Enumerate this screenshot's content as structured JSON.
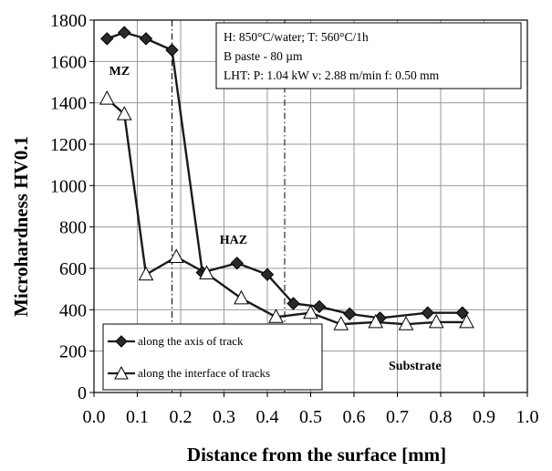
{
  "chart_data": {
    "type": "line",
    "title": "",
    "xlabel": "Distance from the surface [mm]",
    "ylabel": "Microhardness HV0.1",
    "xlim": [
      0.0,
      1.0
    ],
    "ylim": [
      0,
      1800
    ],
    "x_ticks": [
      "0.0",
      "0.1",
      "0.2",
      "0.3",
      "0.4",
      "0.5",
      "0.6",
      "0.7",
      "0.8",
      "0.9",
      "1.0"
    ],
    "y_ticks": [
      "0",
      "200",
      "400",
      "600",
      "800",
      "1000",
      "1200",
      "1400",
      "1600",
      "1800"
    ],
    "x_tick_values": [
      0.0,
      0.1,
      0.2,
      0.3,
      0.4,
      0.5,
      0.6,
      0.7,
      0.8,
      0.9,
      1.0
    ],
    "y_tick_values": [
      0,
      200,
      400,
      600,
      800,
      1000,
      1200,
      1400,
      1600,
      1800
    ],
    "grid": true,
    "series": [
      {
        "name": "along the axis of track",
        "marker": "diamond",
        "color": "#1a1a1a",
        "x": [
          0.03,
          0.07,
          0.12,
          0.18,
          0.25,
          0.33,
          0.4,
          0.46,
          0.52,
          0.59,
          0.66,
          0.77,
          0.85
        ],
        "y": [
          1710,
          1740,
          1710,
          1655,
          580,
          625,
          570,
          430,
          415,
          380,
          360,
          385,
          385
        ]
      },
      {
        "name": "along the interface of tracks",
        "marker": "triangle-open",
        "color": "#1a1a1a",
        "x": [
          0.03,
          0.07,
          0.12,
          0.19,
          0.26,
          0.34,
          0.42,
          0.5,
          0.57,
          0.65,
          0.72,
          0.79,
          0.86
        ],
        "y": [
          1420,
          1345,
          570,
          655,
          575,
          455,
          365,
          385,
          330,
          340,
          330,
          340,
          340
        ]
      }
    ],
    "vlines": [
      0.18,
      0.44
    ],
    "info_box": [
      "H: 850°C/water; T: 560°C/1h",
      "B paste - 80 µm",
      "LHT: P: 1.04 kW v: 2.88 m/min f: 0.50 mm"
    ],
    "annotations": [
      {
        "text": "MZ",
        "x": 0.035,
        "y": 1535
      },
      {
        "text": "HAZ",
        "x": 0.29,
        "y": 720
      },
      {
        "text": "Substrate",
        "x": 0.68,
        "y": 110
      }
    ],
    "legend_position": "bottom-left"
  }
}
